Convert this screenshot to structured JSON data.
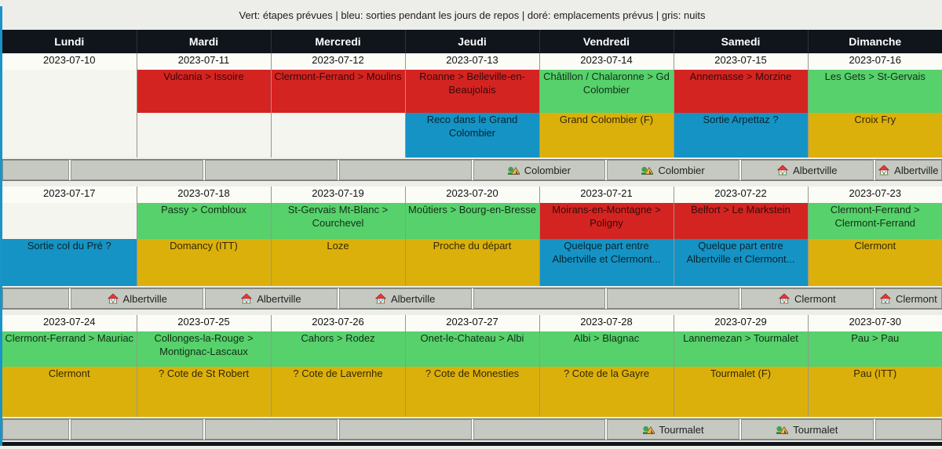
{
  "legend": "Vert: étapes prévues | bleu: sorties pendant les jours de repos | doré: emplacements prévus | gris: nuits",
  "colors": {
    "stage_red": "#d42421",
    "stage_green": "#57d16b",
    "planned_gold": "#dcb00b",
    "rest_blue": "#1593c5",
    "night_gray": "#c5c9c1",
    "header_bg": "#10151c",
    "left_accent": "#1a93c8"
  },
  "day_headers": [
    "Lundi",
    "Mardi",
    "Mercredi",
    "Jeudi",
    "Vendredi",
    "Samedi",
    "Dimanche"
  ],
  "weeks": [
    {
      "dates": [
        "2023-07-10",
        "2023-07-11",
        "2023-07-12",
        "2023-07-13",
        "2023-07-14",
        "2023-07-15",
        "2023-07-16"
      ],
      "stages": [
        {
          "text": "",
          "color": "none"
        },
        {
          "text": "Vulcania > Issoire",
          "color": "red"
        },
        {
          "text": "Clermont-Ferrand > Moulins",
          "color": "red"
        },
        {
          "text": "Roanne > Belleville-en-Beaujolais",
          "color": "red"
        },
        {
          "text": "Châtillon / Chalaronne > Gd Colombier",
          "color": "green"
        },
        {
          "text": "Annemasse > Morzine",
          "color": "red"
        },
        {
          "text": "Les Gets > St-Gervais",
          "color": "green"
        }
      ],
      "activities": [
        {
          "text": "",
          "color": "none"
        },
        {
          "text": "",
          "color": "none"
        },
        {
          "text": "",
          "color": "none"
        },
        {
          "text": "Reco dans le Grand Colombier",
          "color": "blue"
        },
        {
          "text": "Grand Colombier (F)",
          "color": "gold"
        },
        {
          "text": "Sortie Arpettaz ?",
          "color": "blue"
        },
        {
          "text": "Croix Fry",
          "color": "gold"
        }
      ],
      "nights": [
        {
          "text": "",
          "icon": ""
        },
        {
          "text": "",
          "icon": ""
        },
        {
          "text": "",
          "icon": ""
        },
        {
          "text": "",
          "icon": ""
        },
        {
          "text": "Colombier",
          "icon": "tent"
        },
        {
          "text": "Colombier",
          "icon": "tent"
        },
        {
          "text": "Albertville",
          "icon": "house"
        },
        {
          "text": "Albertville",
          "icon": "house"
        }
      ]
    },
    {
      "dates": [
        "2023-07-17",
        "2023-07-18",
        "2023-07-19",
        "2023-07-20",
        "2023-07-21",
        "2023-07-22",
        "2023-07-23"
      ],
      "stages": [
        {
          "text": "",
          "color": "none"
        },
        {
          "text": "Passy > Combloux",
          "color": "green"
        },
        {
          "text": "St-Gervais Mt-Blanc > Courchevel",
          "color": "green"
        },
        {
          "text": "Moûtiers > Bourg-en-Bresse",
          "color": "green"
        },
        {
          "text": "Moirans-en-Montagne > Poligny",
          "color": "red"
        },
        {
          "text": "Belfort > Le Markstein",
          "color": "red"
        },
        {
          "text": "Clermont-Ferrand > Clermont-Ferrand",
          "color": "green"
        }
      ],
      "activities": [
        {
          "text": "Sortie col du Pré ?",
          "color": "blue"
        },
        {
          "text": "Domancy (ITT)",
          "color": "gold"
        },
        {
          "text": "Loze",
          "color": "gold"
        },
        {
          "text": "Proche du départ",
          "color": "gold"
        },
        {
          "text": "Quelque part entre Albertville et Clermont...",
          "color": "blue"
        },
        {
          "text": "Quelque part entre Albertville et Clermont...",
          "color": "blue"
        },
        {
          "text": "Clermont",
          "color": "gold"
        }
      ],
      "nights": [
        {
          "text": "",
          "icon": ""
        },
        {
          "text": "Albertville",
          "icon": "house"
        },
        {
          "text": "Albertville",
          "icon": "house"
        },
        {
          "text": "Albertville",
          "icon": "house"
        },
        {
          "text": "",
          "icon": ""
        },
        {
          "text": "",
          "icon": ""
        },
        {
          "text": "Clermont",
          "icon": "house"
        },
        {
          "text": "Clermont",
          "icon": "house"
        }
      ]
    },
    {
      "dates": [
        "2023-07-24",
        "2023-07-25",
        "2023-07-26",
        "2023-07-27",
        "2023-07-28",
        "2023-07-29",
        "2023-07-30"
      ],
      "stages": [
        {
          "text": "Clermont-Ferrand > Mauriac",
          "color": "green"
        },
        {
          "text": "Collonges-la-Rouge > Montignac-Lascaux",
          "color": "green"
        },
        {
          "text": "Cahors > Rodez",
          "color": "green"
        },
        {
          "text": "Onet-le-Chateau > Albi",
          "color": "green"
        },
        {
          "text": "Albi > Blagnac",
          "color": "green"
        },
        {
          "text": "Lannemezan > Tourmalet",
          "color": "green"
        },
        {
          "text": "Pau > Pau",
          "color": "green"
        }
      ],
      "activities": [
        {
          "text": "Clermont",
          "color": "gold"
        },
        {
          "text": "? Cote de St Robert",
          "color": "gold"
        },
        {
          "text": "? Cote de Lavernhe",
          "color": "gold"
        },
        {
          "text": "? Cote de Monesties",
          "color": "gold"
        },
        {
          "text": "? Cote de la Gayre",
          "color": "gold"
        },
        {
          "text": "Tourmalet (F)",
          "color": "gold"
        },
        {
          "text": "Pau (ITT)",
          "color": "gold"
        }
      ],
      "nights": [
        {
          "text": "",
          "icon": ""
        },
        {
          "text": "",
          "icon": ""
        },
        {
          "text": "",
          "icon": ""
        },
        {
          "text": "",
          "icon": ""
        },
        {
          "text": "",
          "icon": ""
        },
        {
          "text": "Tourmalet",
          "icon": "tent"
        },
        {
          "text": "Tourmalet",
          "icon": "tent"
        },
        {
          "text": "",
          "icon": ""
        }
      ]
    }
  ]
}
